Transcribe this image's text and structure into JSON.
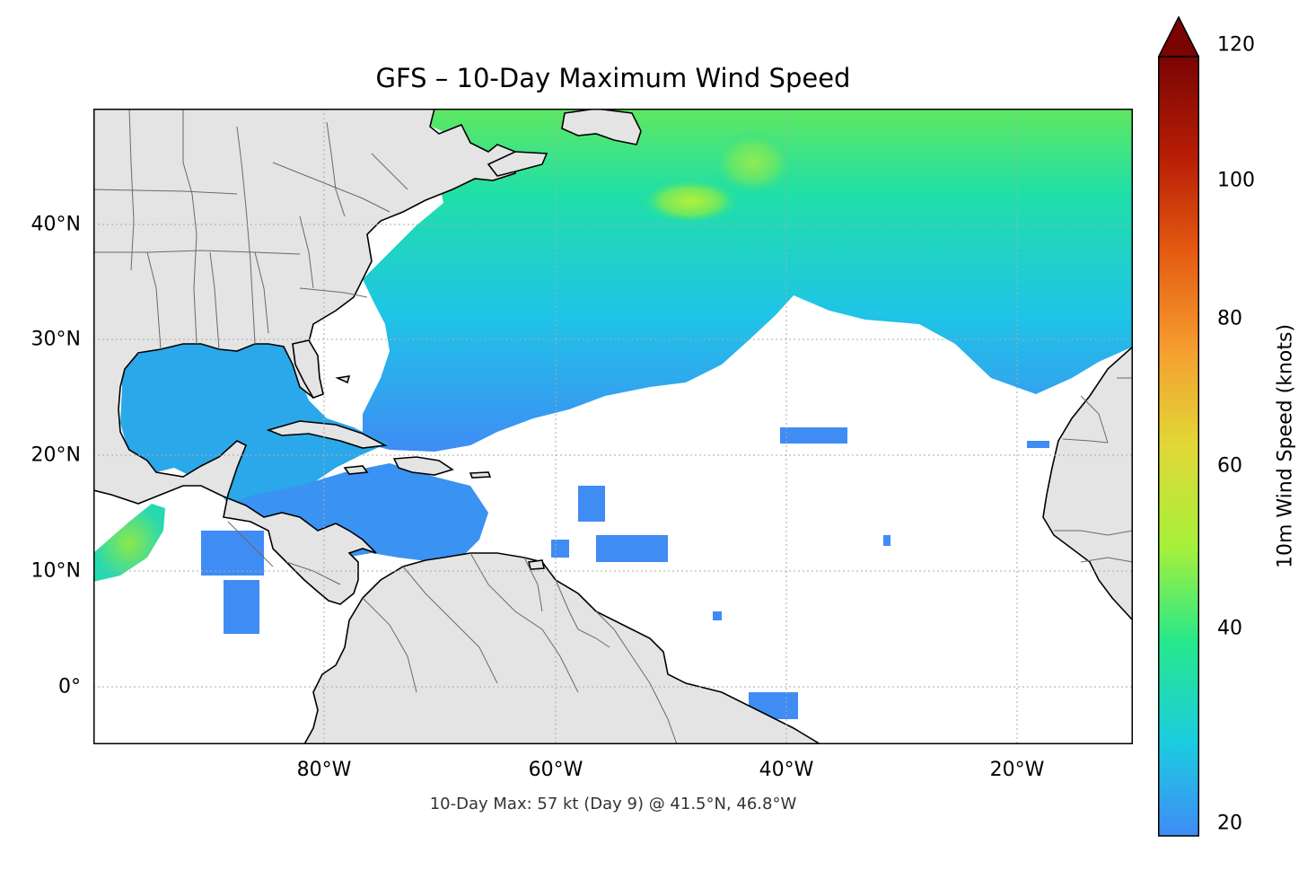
{
  "title": "GFS – 10-Day Maximum Wind Speed",
  "footnote": "10-Day Max: 57 kt (Day 9) @ 41.5°N, 46.8°W",
  "lat_labels": [
    "40°N",
    "30°N",
    "20°N",
    "10°N",
    "0°"
  ],
  "lon_labels": [
    "80°W",
    "60°W",
    "40°W",
    "20°W"
  ],
  "colorbar": {
    "label": "10m Wind Speed (knots)",
    "ticks": [
      "20",
      "40",
      "60",
      "80",
      "100",
      "120"
    ],
    "colors": [
      "#3f8cf5",
      "#1ccce0",
      "#27e88a",
      "#a6f03a",
      "#e0d836",
      "#f5a030",
      "#e55a12",
      "#b81e05",
      "#7a0403"
    ]
  },
  "map": {
    "extent_lon": [
      -100,
      -10
    ],
    "extent_lat": [
      -5,
      50
    ],
    "land_color": "#e4e4e4",
    "max_location": {
      "lat": 41.5,
      "lon": -46.8,
      "value_kt": 57,
      "day": 9
    }
  }
}
